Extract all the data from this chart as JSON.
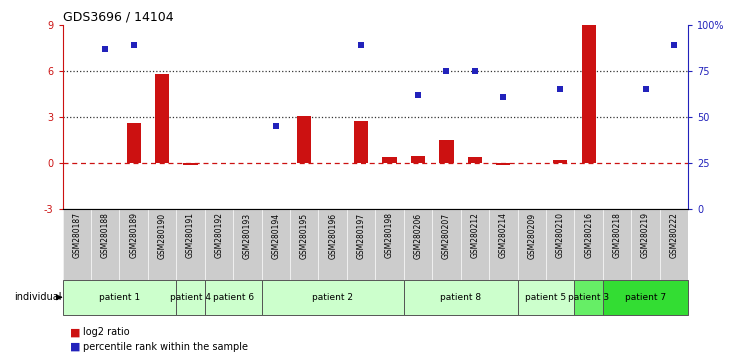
{
  "title": "GDS3696 / 14104",
  "samples": [
    "GSM280187",
    "GSM280188",
    "GSM280189",
    "GSM280190",
    "GSM280191",
    "GSM280192",
    "GSM280193",
    "GSM280194",
    "GSM280195",
    "GSM280196",
    "GSM280197",
    "GSM280198",
    "GSM280206",
    "GSM280207",
    "GSM280212",
    "GSM280214",
    "GSM280209",
    "GSM280210",
    "GSM280216",
    "GSM280218",
    "GSM280219",
    "GSM280222"
  ],
  "log2_vals": [
    0.0,
    0.0,
    2.6,
    5.8,
    -0.15,
    0.0,
    0.0,
    0.0,
    3.05,
    0.0,
    2.7,
    0.35,
    0.45,
    1.5,
    0.35,
    -0.15,
    0.0,
    0.2,
    9.0,
    0.0,
    0.0,
    0.0
  ],
  "prank_vals": [
    null,
    87,
    89,
    null,
    null,
    null,
    null,
    45,
    null,
    null,
    89,
    null,
    62,
    75,
    75,
    61,
    null,
    65,
    null,
    null,
    65,
    89
  ],
  "patient_groups": [
    {
      "label": "patient 1",
      "start": 0,
      "end": 3,
      "color": "#ccffcc"
    },
    {
      "label": "patient 4",
      "start": 4,
      "end": 4,
      "color": "#ccffcc"
    },
    {
      "label": "patient 6",
      "start": 5,
      "end": 6,
      "color": "#ccffcc"
    },
    {
      "label": "patient 2",
      "start": 7,
      "end": 11,
      "color": "#ccffcc"
    },
    {
      "label": "patient 8",
      "start": 12,
      "end": 15,
      "color": "#ccffcc"
    },
    {
      "label": "patient 5",
      "start": 16,
      "end": 17,
      "color": "#ccffcc"
    },
    {
      "label": "patient 3",
      "start": 18,
      "end": 18,
      "color": "#66ee66"
    },
    {
      "label": "patient 7",
      "start": 19,
      "end": 21,
      "color": "#33dd33"
    }
  ],
  "bar_color": "#cc1111",
  "scatter_color": "#2222bb",
  "bg_color": "#ffffff",
  "label_bg": "#cccccc",
  "ylim_left": [
    -3,
    9
  ],
  "ylim_right": [
    0,
    100
  ],
  "yticks_left": [
    -3,
    0,
    3,
    6,
    9
  ],
  "yticks_right": [
    0,
    25,
    50,
    75,
    100
  ]
}
